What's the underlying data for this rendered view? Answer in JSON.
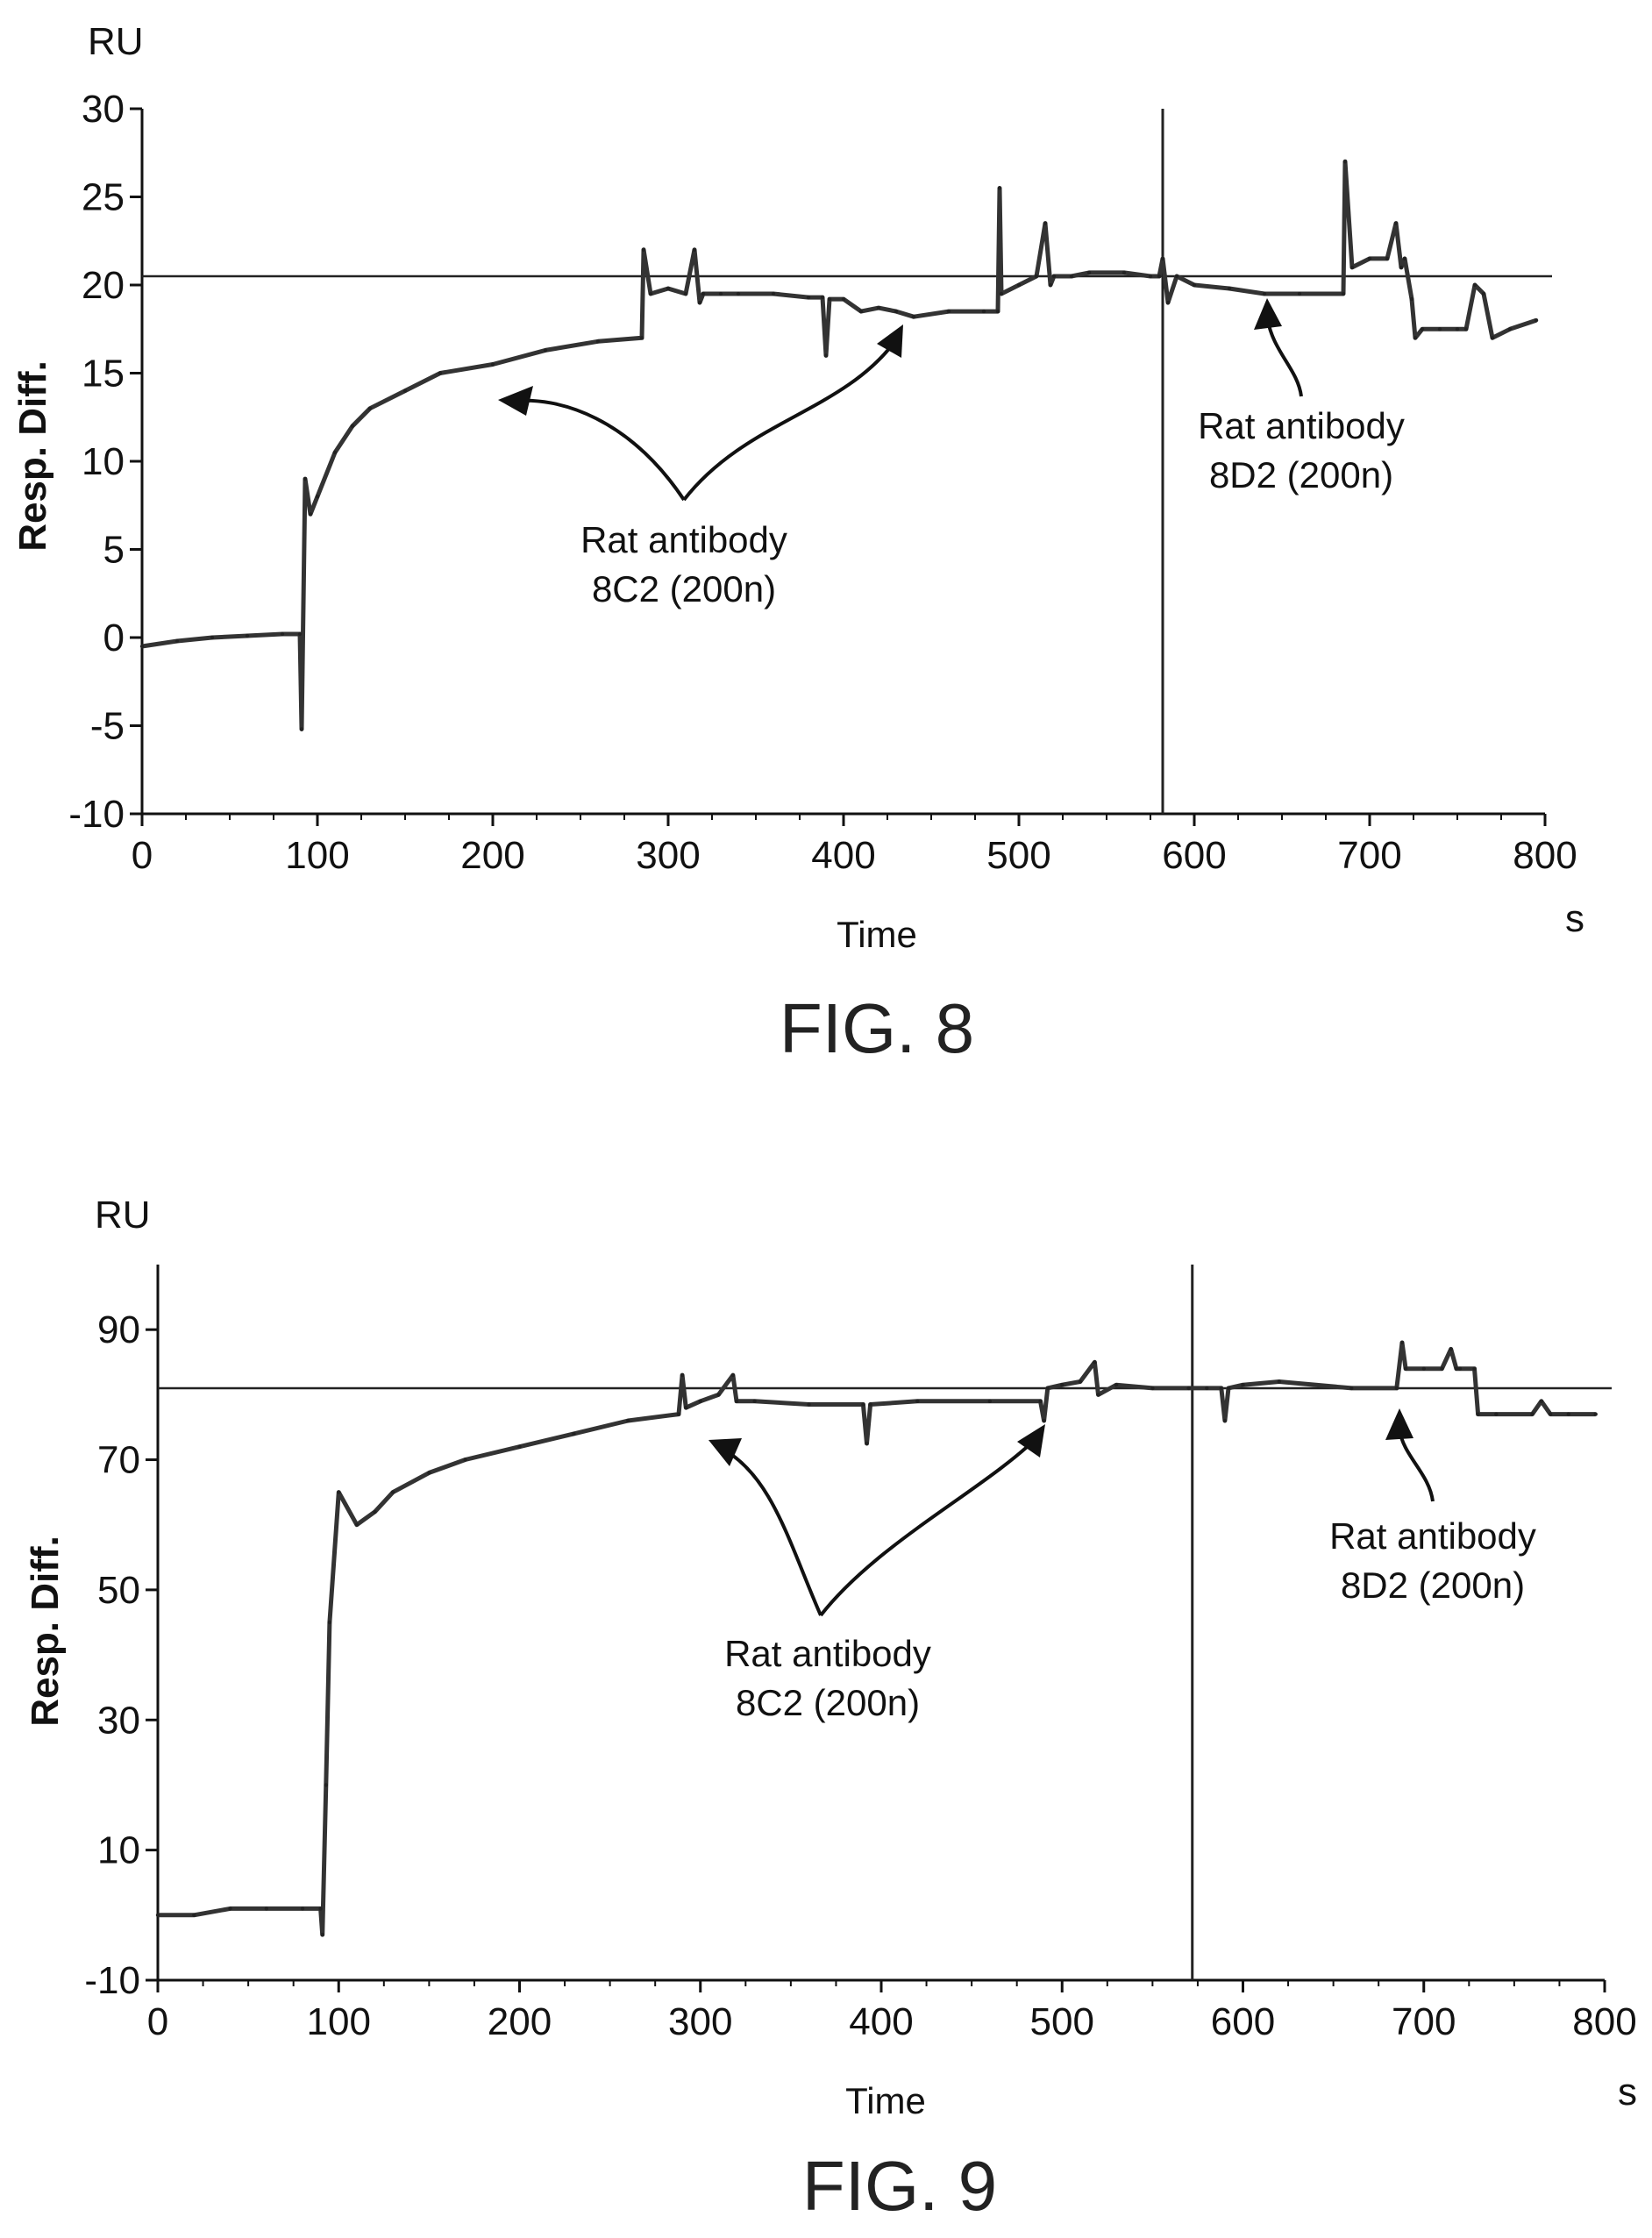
{
  "chart_data": [
    {
      "type": "line",
      "figure_label": "FIG. 8",
      "ylabel": "Resp. Diff.",
      "yunit": "RU",
      "xlabel": "Time",
      "xunit": "s",
      "xlim": [
        0,
        800
      ],
      "ylim": [
        -10,
        30
      ],
      "xticks": [
        0,
        100,
        200,
        300,
        400,
        500,
        600,
        700,
        800
      ],
      "yticks": [
        -10,
        -5,
        0,
        5,
        10,
        15,
        20,
        25,
        30
      ],
      "reference_hline": 20.5,
      "reference_vline": 582,
      "series": [
        {
          "x": [
            0,
            20,
            40,
            60,
            80,
            90,
            91,
            93,
            96,
            100,
            110,
            120,
            130,
            150,
            170,
            200,
            230,
            260,
            285,
            286,
            290,
            300,
            310,
            315,
            318,
            320,
            330,
            340,
            360,
            380,
            388,
            390,
            392,
            400,
            410,
            420,
            430,
            440,
            460,
            480,
            488,
            489,
            490,
            500,
            510,
            515,
            518,
            520,
            530,
            540,
            560,
            575,
            580,
            582,
            585,
            590,
            600,
            620,
            640,
            660,
            685,
            686,
            690,
            700,
            710,
            715,
            718,
            720,
            724,
            726,
            730,
            740,
            750,
            755,
            760,
            765,
            770,
            780,
            795
          ],
          "y": [
            -0.5,
            -0.2,
            0,
            0.1,
            0.2,
            0.2,
            -5.2,
            9,
            7,
            8,
            10.5,
            12,
            13,
            14,
            15,
            15.5,
            16.3,
            16.8,
            17,
            22,
            19.5,
            19.8,
            19.5,
            22,
            19,
            19.5,
            19.5,
            19.5,
            19.5,
            19.3,
            19.3,
            16,
            19.2,
            19.2,
            18.5,
            18.7,
            18.5,
            18.2,
            18.5,
            18.5,
            18.5,
            25.5,
            19.5,
            20,
            20.5,
            23.5,
            20,
            20.5,
            20.5,
            20.7,
            20.7,
            20.5,
            20.5,
            21.5,
            19,
            20.5,
            20,
            19.8,
            19.5,
            19.5,
            19.5,
            27,
            21,
            21.5,
            21.5,
            23.5,
            21,
            21.5,
            19.2,
            17,
            17.5,
            17.5,
            17.5,
            17.5,
            20,
            19.5,
            17,
            17.5,
            18
          ]
        }
      ],
      "annotations": [
        {
          "text_line1": "Rat antibody",
          "text_line2": "8C2 (200n)",
          "points_to_x": [
            200,
            435
          ]
        },
        {
          "text_line1": "Rat antibody",
          "text_line2": "8D2 (200n)",
          "points_to_x": [
            640
          ]
        }
      ]
    },
    {
      "type": "line",
      "figure_label": "FIG. 9",
      "ylabel": "Resp. Diff.",
      "yunit": "RU",
      "xlabel": "Time",
      "xunit": "s",
      "xlim": [
        0,
        800
      ],
      "ylim": [
        -10,
        100
      ],
      "xticks": [
        0,
        100,
        200,
        300,
        400,
        500,
        600,
        700,
        800
      ],
      "yticks": [
        -10,
        10,
        30,
        50,
        70,
        90
      ],
      "reference_hline": 81,
      "reference_vline": 572,
      "series": [
        {
          "x": [
            0,
            20,
            40,
            60,
            80,
            90,
            91,
            93,
            95,
            100,
            110,
            120,
            130,
            150,
            170,
            200,
            230,
            260,
            288,
            290,
            292,
            300,
            310,
            318,
            320,
            330,
            360,
            390,
            392,
            394,
            420,
            460,
            488,
            490,
            492,
            500,
            510,
            518,
            520,
            530,
            550,
            570,
            580,
            588,
            590,
            592,
            600,
            620,
            660,
            685,
            688,
            690,
            700,
            710,
            715,
            718,
            720,
            728,
            730,
            740,
            760,
            765,
            770,
            780,
            795
          ],
          "y": [
            0,
            0,
            1,
            1,
            1,
            1,
            -3,
            20,
            45,
            65,
            60,
            62,
            65,
            68,
            70,
            72,
            74,
            76,
            77,
            83,
            78,
            79,
            80,
            83,
            79,
            79,
            78.5,
            78.5,
            72.5,
            78.5,
            79,
            79,
            79,
            76,
            81,
            81.5,
            82,
            85,
            80,
            81.5,
            81,
            81,
            81,
            81,
            76,
            81,
            81.5,
            82,
            81,
            81,
            88,
            84,
            84,
            84,
            87,
            84,
            84,
            84,
            77,
            77,
            77,
            79,
            77,
            77,
            77
          ]
        }
      ],
      "annotations": [
        {
          "text_line1": "Rat antibody",
          "text_line2": "8C2 (200n)",
          "points_to_x": [
            300,
            490
          ]
        },
        {
          "text_line1": "Rat antibody",
          "text_line2": "8D2 (200n)",
          "points_to_x": [
            690
          ]
        }
      ]
    }
  ]
}
